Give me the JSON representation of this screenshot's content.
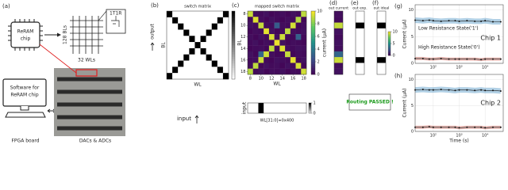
{
  "diagram": {
    "panel": "(a)",
    "chip_label": [
      "ReRAM",
      "chip"
    ],
    "bl_label": "128 BLs",
    "wl_label": "32 WLs",
    "cell_label": "1T1R",
    "software_label": [
      "Software for",
      "ReRAM chip"
    ],
    "fpga_label": "FPGA board",
    "dac_label": "DACs & ADCs"
  },
  "status": "Routing PASSED !",
  "chart_data": [
    {
      "type": "heatmap",
      "panel": "(b)",
      "title": "switch matrix",
      "xlabel": "WL",
      "ylabel": "BL",
      "annotations": [
        "output",
        "input"
      ],
      "colormap": "gray_r",
      "zlim": [
        0,
        1
      ],
      "x": [
        8,
        9,
        10,
        11,
        12,
        13,
        14,
        15,
        16,
        17,
        18
      ],
      "y": [
        8,
        9,
        10,
        11,
        12,
        13,
        14,
        15,
        16,
        17,
        18
      ],
      "values": [
        [
          1,
          0,
          0,
          0,
          0,
          0,
          0,
          0,
          0,
          0,
          1
        ],
        [
          0,
          1,
          0,
          0,
          0,
          0,
          0,
          0,
          0,
          1,
          0
        ],
        [
          0,
          0,
          1,
          0,
          0,
          0,
          0,
          0,
          1,
          0,
          0
        ],
        [
          0,
          0,
          0,
          1,
          0,
          0,
          0,
          1,
          0,
          0,
          0
        ],
        [
          0,
          0,
          0,
          0,
          1,
          0,
          1,
          0,
          0,
          0,
          0
        ],
        [
          0,
          0,
          0,
          0,
          0,
          1,
          0,
          0,
          0,
          0,
          0
        ],
        [
          0,
          0,
          0,
          0,
          1,
          0,
          1,
          0,
          0,
          0,
          0
        ],
        [
          0,
          0,
          0,
          1,
          0,
          0,
          0,
          1,
          0,
          0,
          0
        ],
        [
          0,
          0,
          1,
          0,
          0,
          0,
          0,
          0,
          1,
          0,
          0
        ],
        [
          0,
          1,
          0,
          0,
          0,
          0,
          0,
          0,
          0,
          1,
          0
        ],
        [
          1,
          0,
          0,
          0,
          0,
          0,
          0,
          0,
          0,
          0,
          1
        ]
      ]
    },
    {
      "type": "heatmap",
      "panel": "(c)",
      "title": "mapped switch matrix",
      "xlabel": "WL",
      "ylabel": "BL",
      "zlabel": "current (μA)",
      "colormap": "viridis",
      "zlim": [
        0,
        10
      ],
      "zticks": [
        0,
        2,
        4,
        6,
        8,
        10
      ],
      "x": [
        8,
        9,
        10,
        11,
        12,
        13,
        14,
        15,
        16,
        17,
        18
      ],
      "y": [
        8,
        9,
        10,
        11,
        12,
        13,
        14,
        15,
        16,
        17,
        18
      ],
      "xticks": [
        8,
        10,
        12,
        14,
        16,
        18
      ],
      "yticks": [
        8,
        10,
        12,
        14,
        16,
        18
      ],
      "values": [
        [
          9.2,
          0.4,
          0.3,
          0.5,
          0.2,
          0.3,
          0.4,
          0.2,
          0.5,
          0.3,
          9.0
        ],
        [
          0.3,
          9.5,
          0.4,
          0.2,
          0.5,
          0.3,
          0.2,
          0.4,
          0.3,
          8.8,
          0.2
        ],
        [
          0.5,
          0.3,
          9.1,
          0.4,
          0.3,
          2.9,
          0.4,
          0.3,
          9.3,
          0.2,
          0.4
        ],
        [
          0.2,
          0.4,
          0.3,
          9.6,
          0.5,
          0.2,
          0.3,
          9.0,
          0.4,
          0.3,
          0.5
        ],
        [
          0.4,
          0.2,
          0.5,
          0.3,
          9.4,
          0.4,
          9.2,
          0.3,
          0.2,
          3.1,
          0.3
        ],
        [
          0.3,
          0.5,
          0.2,
          0.4,
          0.3,
          9.7,
          0.5,
          0.2,
          0.4,
          0.3,
          0.2
        ],
        [
          0.2,
          0.3,
          0.4,
          0.2,
          9.0,
          0.3,
          9.5,
          0.4,
          0.3,
          0.5,
          0.4
        ],
        [
          0.5,
          0.2,
          3.3,
          9.3,
          0.4,
          0.2,
          0.3,
          9.1,
          0.2,
          0.4,
          0.3
        ],
        [
          0.3,
          0.4,
          9.2,
          0.3,
          0.2,
          0.5,
          0.4,
          0.3,
          9.6,
          0.2,
          0.5
        ],
        [
          0.4,
          9.0,
          0.2,
          0.5,
          0.3,
          0.4,
          0.2,
          0.5,
          0.3,
          9.4,
          0.2
        ],
        [
          8.9,
          0.3,
          0.5,
          0.2,
          0.4,
          0.3,
          0.5,
          0.2,
          0.4,
          0.3,
          9.3
        ]
      ]
    },
    {
      "type": "strip",
      "orientation": "horizontal",
      "ylabel": "input",
      "xlabel": "WL[31:0]=0x400",
      "colormap": "gray_r",
      "zlim": [
        0,
        1
      ],
      "zticks": [
        0,
        1
      ],
      "values": [
        0,
        0,
        1,
        0,
        0,
        0,
        0,
        0,
        0,
        0,
        0
      ]
    },
    {
      "type": "strip",
      "orientation": "vertical",
      "panel": "(d)",
      "title": "out current",
      "colormap": "viridis",
      "zlim": [
        0,
        10
      ],
      "zticks": [
        0,
        5,
        10
      ],
      "values": [
        0.4,
        0.3,
        9.1,
        0.5,
        0.3,
        0.5,
        0.4,
        3.3,
        9.2,
        0.4,
        0.5
      ]
    },
    {
      "type": "strip",
      "orientation": "vertical",
      "panel": "(e)",
      "title": "out exp.",
      "colormap": "gray_r",
      "zlim": [
        0,
        1
      ],
      "values": [
        0,
        0,
        1,
        0,
        0,
        0,
        0,
        0,
        1,
        0,
        0
      ]
    },
    {
      "type": "strip",
      "orientation": "vertical",
      "panel": "(f)",
      "title": "out ideal",
      "colormap": "gray_r",
      "zlim": [
        0,
        1
      ],
      "values": [
        0,
        0,
        1,
        0,
        0,
        0,
        0,
        0,
        1,
        0,
        0
      ]
    },
    {
      "type": "line",
      "panel": "(g)",
      "ylabel": "Current (μA)",
      "annotations": [
        "Low Resistance State('1')",
        "High Resistance State('0')",
        "Chip 1"
      ],
      "log_x": true,
      "grid": true,
      "xlim": [
        20,
        50000
      ],
      "ylim": [
        0,
        11
      ],
      "yticks": [
        0,
        5,
        10
      ],
      "xticks": [
        {
          "value": 100,
          "label": "10²"
        },
        {
          "value": 1000,
          "label": "10³"
        },
        {
          "value": 10000,
          "label": "10⁴"
        }
      ],
      "x": [
        20,
        40,
        70,
        100,
        200,
        400,
        700,
        1000,
        2000,
        4000,
        7000,
        10000,
        20000,
        40000
      ],
      "series": [
        {
          "name": "Low Resistance State('1')",
          "color": "#1f77b4",
          "values": [
            8.1,
            8.0,
            8.1,
            8.0,
            7.9,
            8.0,
            8.0,
            7.9,
            8.0,
            7.9,
            7.9,
            8.0,
            7.8,
            7.8
          ]
        },
        {
          "name": "High Resistance State('0')",
          "color": "#c0392b",
          "values": [
            0.9,
            0.9,
            0.8,
            0.8,
            0.9,
            0.8,
            0.8,
            0.8,
            0.8,
            0.8,
            0.7,
            0.8,
            0.8,
            0.8
          ]
        }
      ]
    },
    {
      "type": "line",
      "panel": "(h)",
      "ylabel": "Current (μA)",
      "xlabel": "Time (s)",
      "annotations": [
        "Chip 2"
      ],
      "log_x": true,
      "grid": true,
      "xlim": [
        20,
        50000
      ],
      "ylim": [
        0,
        11
      ],
      "yticks": [
        0,
        5,
        10
      ],
      "xticks": [
        {
          "value": 100,
          "label": "10²"
        },
        {
          "value": 1000,
          "label": "10³"
        },
        {
          "value": 10000,
          "label": "10⁴"
        }
      ],
      "x": [
        20,
        40,
        70,
        100,
        200,
        400,
        700,
        1000,
        2000,
        4000,
        7000,
        10000,
        20000,
        40000
      ],
      "series": [
        {
          "name": "Low Resistance State('1')",
          "color": "#1f77b4",
          "values": [
            8.0,
            8.1,
            8.0,
            8.0,
            8.1,
            8.0,
            7.9,
            8.0,
            8.0,
            7.9,
            8.0,
            7.9,
            7.9,
            7.8
          ]
        },
        {
          "name": "High Resistance State('0')",
          "color": "#c0392b",
          "values": [
            0.8,
            0.8,
            0.9,
            0.8,
            0.8,
            0.8,
            0.8,
            0.7,
            0.8,
            0.8,
            0.8,
            0.7,
            0.8,
            0.8
          ]
        }
      ]
    }
  ]
}
